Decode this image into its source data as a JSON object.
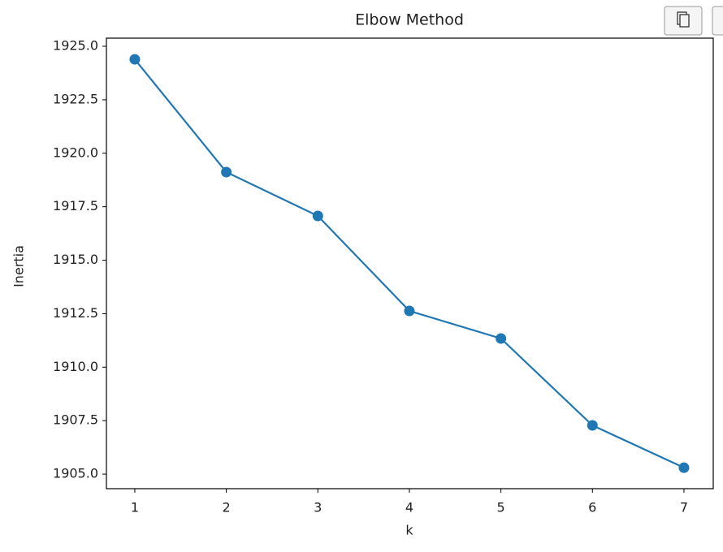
{
  "chart_data": {
    "type": "line",
    "title": "Elbow Method",
    "x_label": "k",
    "y_label": "Inertia",
    "x": [
      1,
      2,
      3,
      4,
      5,
      6,
      7
    ],
    "series": [
      {
        "color": "#1f77b4",
        "values": [
          1924.39,
          1919.12,
          1917.07,
          1912.63,
          1911.34,
          1907.28,
          1905.3
        ]
      }
    ],
    "xlim": [
      0.69,
      7.32
    ],
    "xticks": [
      1,
      2,
      3,
      4,
      5,
      6,
      7
    ],
    "ylim": [
      1904.32,
      1925.38
    ],
    "yticks": [
      {
        "value": 1905,
        "label": "1905.0"
      },
      {
        "value": 1907.5,
        "label": "1907.5"
      },
      {
        "value": 1910,
        "label": "1910.0"
      },
      {
        "value": 1912.5,
        "label": "1912.5"
      },
      {
        "value": 1915,
        "label": "1915.0"
      },
      {
        "value": 1917.5,
        "label": "1917.5"
      },
      {
        "value": 1920,
        "label": "1920.0"
      },
      {
        "value": 1922.5,
        "label": "1922.5"
      },
      {
        "value": 1925,
        "label": "1925.0"
      }
    ],
    "markers": true
  }
}
